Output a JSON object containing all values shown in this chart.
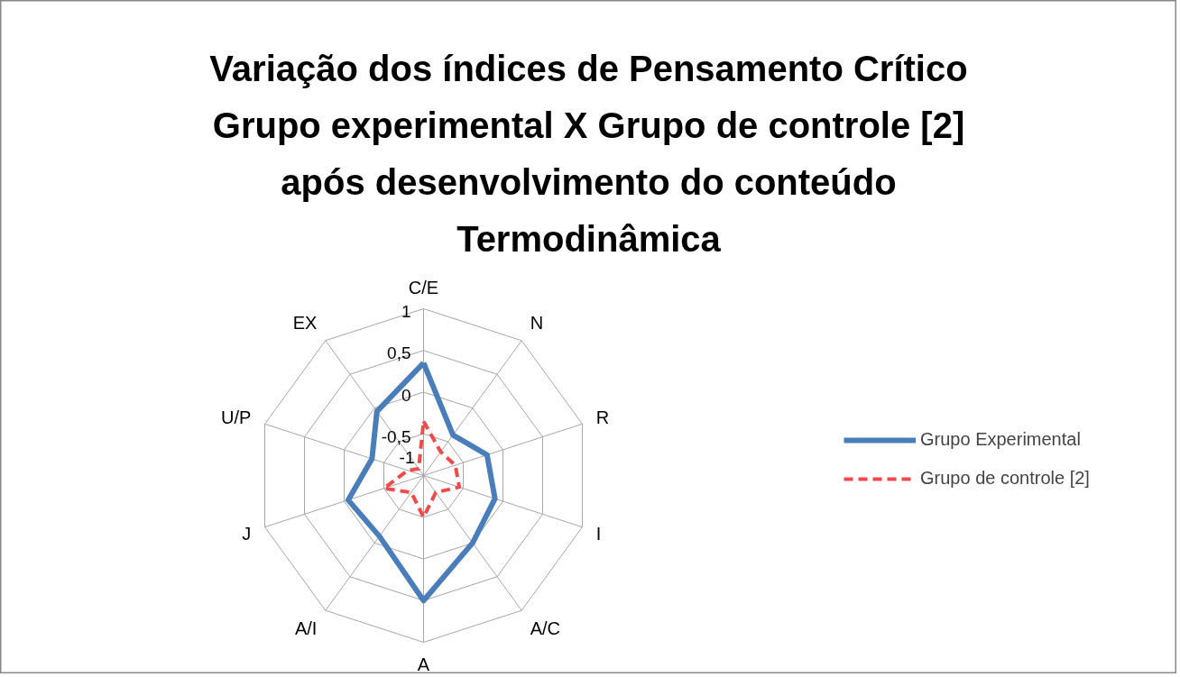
{
  "chart_data": {
    "type": "radar",
    "title": "Variação dos índices de Pensamento Crítico\nGrupo experimental X Grupo de controle [2]\napós desenvolvimento do conteúdo\nTermodinâmica",
    "categories": [
      "C/E",
      "N",
      "R",
      "I",
      "A/C",
      "A",
      "A/I",
      "J",
      "U/P",
      "EX"
    ],
    "series": [
      {
        "name": "Grupo Experimental",
        "color": "#4a7ebb",
        "line_style": "solid",
        "values": [
          0.35,
          -0.4,
          -0.2,
          -0.1,
          0,
          0.5,
          -0.1,
          -0.05,
          -0.35,
          -0.05
        ]
      },
      {
        "name": "Grupo de controle [2]",
        "color": "#f04a4a",
        "line_style": "dashed",
        "values": [
          -0.35,
          -0.65,
          -0.6,
          -0.55,
          -0.75,
          -0.5,
          -0.75,
          -0.5,
          -0.8,
          -0.9
        ]
      }
    ],
    "ylim": [
      -1,
      1
    ],
    "yticks": [
      {
        "value": -1,
        "label": "-1"
      },
      {
        "value": -0.5,
        "label": "-0,5"
      },
      {
        "value": 0,
        "label": "0"
      },
      {
        "value": 0.5,
        "label": "0,5"
      },
      {
        "value": 1,
        "label": "1"
      }
    ],
    "grid": true,
    "legend": "right",
    "marker": "none"
  }
}
